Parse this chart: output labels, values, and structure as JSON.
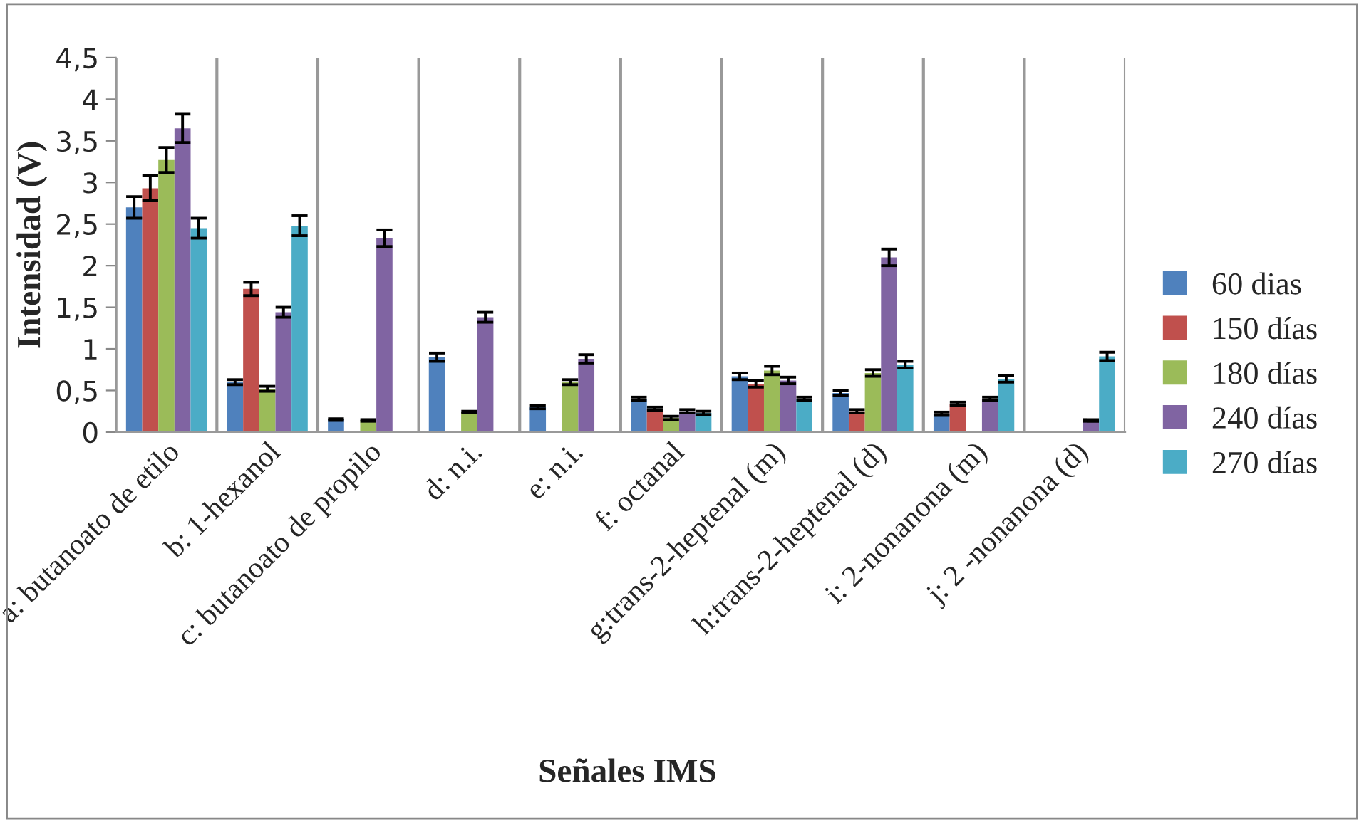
{
  "chart_data": {
    "type": "bar",
    "xlabel": "Señales IMS",
    "ylabel": "Intensidad (V)",
    "categories": [
      "a: butanoato de etilo",
      "b: 1-hexanol",
      "c: butanoato de propilo",
      "d: n.i.",
      "e: n.i.",
      "f: octanal",
      "g:trans-2-heptenal (m)",
      "h:trans-2-heptenal (d)",
      "i: 2-nonanona (m)",
      "j: 2 -nonanona (d)"
    ],
    "series": [
      {
        "name": "60 dias",
        "color": "#4f81bd",
        "values": [
          2.7,
          0.6,
          0.15,
          0.9,
          0.3,
          0.4,
          0.67,
          0.47,
          0.22,
          null
        ],
        "errors": [
          0.13,
          0.03,
          0.01,
          0.05,
          0.02,
          0.02,
          0.04,
          0.03,
          0.02,
          null
        ]
      },
      {
        "name": "150 días",
        "color": "#c0504d",
        "values": [
          2.93,
          1.72,
          null,
          null,
          null,
          0.28,
          0.58,
          0.25,
          0.34,
          null
        ],
        "errors": [
          0.15,
          0.08,
          null,
          null,
          null,
          0.02,
          0.04,
          0.02,
          0.02,
          null
        ]
      },
      {
        "name": "180 días",
        "color": "#9bbb59",
        "values": [
          3.27,
          0.52,
          0.14,
          0.24,
          0.6,
          0.17,
          0.74,
          0.71,
          null,
          null
        ],
        "errors": [
          0.15,
          0.03,
          0.01,
          0.01,
          0.03,
          0.02,
          0.05,
          0.04,
          null,
          null
        ]
      },
      {
        "name": "240 días",
        "color": "#8064a2",
        "values": [
          3.65,
          1.44,
          2.33,
          1.38,
          0.88,
          0.25,
          0.62,
          2.1,
          0.4,
          0.14
        ],
        "errors": [
          0.17,
          0.06,
          0.1,
          0.06,
          0.05,
          0.02,
          0.04,
          0.1,
          0.02,
          0.01
        ]
      },
      {
        "name": "270 días",
        "color": "#4bacc6",
        "values": [
          2.45,
          2.48,
          null,
          null,
          null,
          0.23,
          0.4,
          0.81,
          0.64,
          0.91
        ],
        "errors": [
          0.12,
          0.12,
          null,
          null,
          null,
          0.02,
          0.02,
          0.04,
          0.04,
          0.05
        ]
      }
    ],
    "ylim": [
      0,
      4.5
    ],
    "yticks": [
      {
        "value": 0,
        "label": "0"
      },
      {
        "value": 0.5,
        "label": "0,5"
      },
      {
        "value": 1,
        "label": "1"
      },
      {
        "value": 1.5,
        "label": "1,5"
      },
      {
        "value": 2,
        "label": "2"
      },
      {
        "value": 2.5,
        "label": "2,5"
      },
      {
        "value": 3,
        "label": "3"
      },
      {
        "value": 3.5,
        "label": "3,5"
      },
      {
        "value": 4,
        "label": "4"
      },
      {
        "value": 4.5,
        "label": "4,5"
      }
    ],
    "grid": "x",
    "legend": "right"
  }
}
